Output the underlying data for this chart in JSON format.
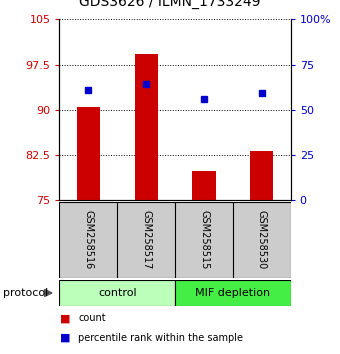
{
  "title": "GDS3626 / ILMN_1733249",
  "samples": [
    "GSM258516",
    "GSM258517",
    "GSM258515",
    "GSM258530"
  ],
  "bar_values": [
    90.5,
    99.2,
    79.8,
    83.2
  ],
  "bar_bottom": 75,
  "scatter_values": [
    93.3,
    94.2,
    91.8,
    92.8
  ],
  "bar_color": "#cc0000",
  "scatter_color": "#0000cc",
  "ylim_left": [
    75,
    105
  ],
  "ylim_right": [
    0,
    100
  ],
  "yticks_left": [
    75,
    82.5,
    90,
    97.5,
    105
  ],
  "yticks_right": [
    0,
    25,
    50,
    75,
    100
  ],
  "ytick_labels_left": [
    "75",
    "82.5",
    "90",
    "97.5",
    "105"
  ],
  "ytick_labels_right": [
    "0",
    "25",
    "50",
    "75",
    "100%"
  ],
  "groups": [
    {
      "label": "control",
      "count": 2,
      "color": "#bbffbb"
    },
    {
      "label": "MIF depletion",
      "count": 2,
      "color": "#44ee44"
    }
  ],
  "protocol_label": "protocol",
  "legend_items": [
    {
      "color": "#cc0000",
      "label": "count"
    },
    {
      "color": "#0000cc",
      "label": "percentile rank within the sample"
    }
  ],
  "sample_box_color": "#cccccc",
  "fig_width": 3.4,
  "fig_height": 3.54,
  "dpi": 100
}
